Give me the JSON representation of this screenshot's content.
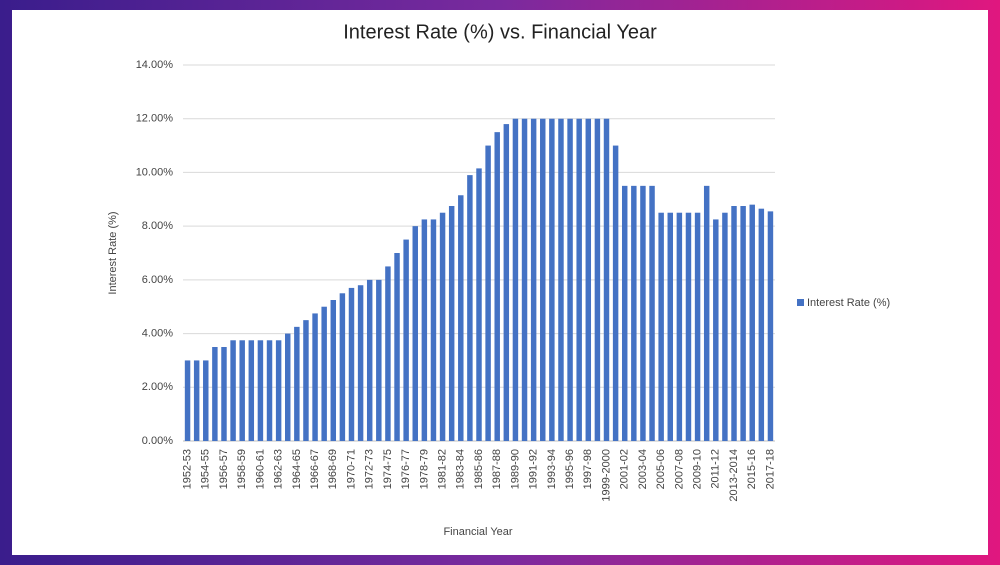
{
  "chart_data": {
    "type": "bar",
    "title": "Interest Rate (%) vs. Financial Year",
    "x_label": "Financial Year",
    "y_label": "Interest Rate (%)",
    "legend": "right",
    "grid": true,
    "categories": [
      "1952-53",
      null,
      "1954-55",
      null,
      "1956-57",
      null,
      "1958-59",
      null,
      "1960-61",
      null,
      "1962-63",
      null,
      "1964-65",
      null,
      "1966-67",
      null,
      "1968-69",
      null,
      "1970-71",
      null,
      "1972-73",
      null,
      "1974-75",
      null,
      "1976-77",
      null,
      "1978-79",
      null,
      "1981-82",
      null,
      "1983-84",
      null,
      "1985-86",
      null,
      "1987-88",
      null,
      "1989-90",
      null,
      "1991-92",
      null,
      "1993-94",
      null,
      "1995-96",
      null,
      "1997-98",
      null,
      "1999-2000",
      null,
      "2001-02",
      null,
      "2003-04",
      null,
      "2005-06",
      null,
      "2007-08",
      null,
      "2009-10",
      null,
      "2011-12",
      null,
      "2013-2014",
      null,
      "2015-16",
      null,
      "2017-18"
    ],
    "series": [
      {
        "name": "Interest Rate (%)",
        "color": "#4472c4",
        "values": [
          3.0,
          3.0,
          3.0,
          3.5,
          3.5,
          3.75,
          3.75,
          3.75,
          3.75,
          3.75,
          3.75,
          4.0,
          4.25,
          4.5,
          4.75,
          5.0,
          5.25,
          5.5,
          5.7,
          5.8,
          6.0,
          6.0,
          6.5,
          7.0,
          7.5,
          8.0,
          8.25,
          8.25,
          8.5,
          8.75,
          9.15,
          9.9,
          10.15,
          11.0,
          11.5,
          11.8,
          12.0,
          12.0,
          12.0,
          12.0,
          12.0,
          12.0,
          12.0,
          12.0,
          12.0,
          12.0,
          12.0,
          11.0,
          9.5,
          9.5,
          9.5,
          9.5,
          8.5,
          8.5,
          8.5,
          8.5,
          8.5,
          9.5,
          8.25,
          8.5,
          8.75,
          8.75,
          8.8,
          8.65,
          8.55
        ]
      }
    ],
    "ylim": [
      0,
      14
    ],
    "yticks": [
      {
        "value": 0,
        "label": "0.00%"
      },
      {
        "value": 2,
        "label": "2.00%"
      },
      {
        "value": 4,
        "label": "4.00%"
      },
      {
        "value": 6,
        "label": "6.00%"
      },
      {
        "value": 8,
        "label": "8.00%"
      },
      {
        "value": 10,
        "label": "10.00%"
      },
      {
        "value": 12,
        "label": "12.00%"
      },
      {
        "value": 14,
        "label": "14.00%"
      }
    ]
  }
}
